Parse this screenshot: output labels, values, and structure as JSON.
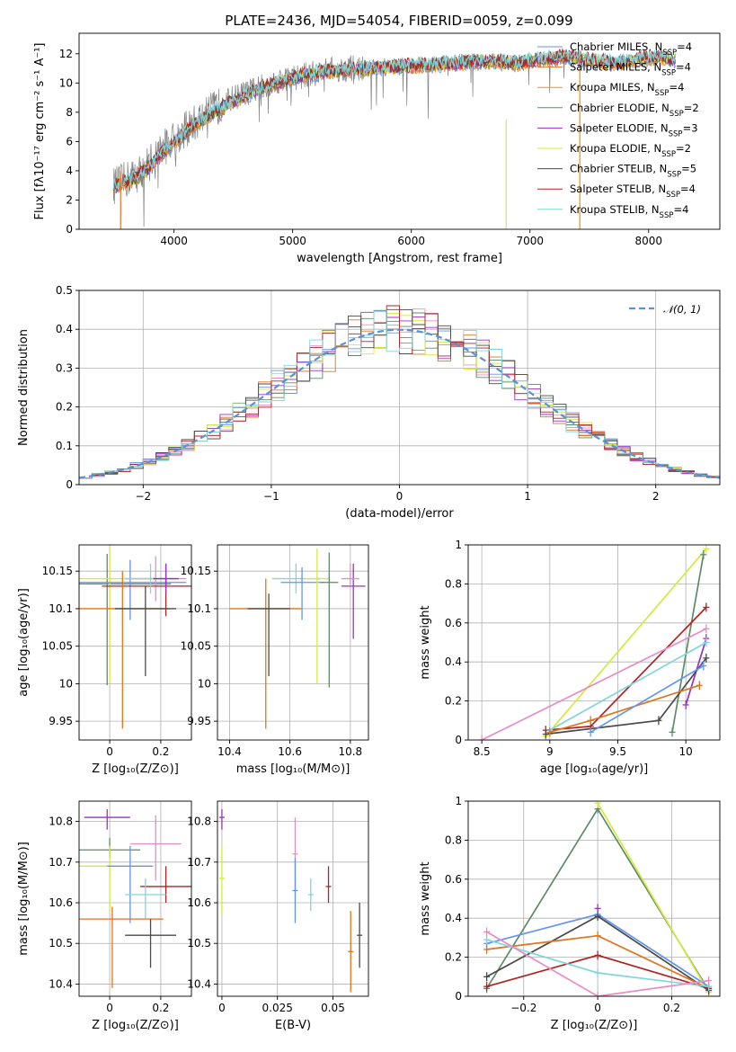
{
  "figure_title": "PLATE=2436, MJD=54054, FIBERID=0059, z=0.099",
  "colors": {
    "Chabrier MILES": "#6495ed",
    "Salpeter MILES": "#e2721b",
    "Kroupa MILES": "#ff8c00",
    "Chabrier ELODIE": "#5e8a66",
    "Salpeter ELODIE": "#9b30c0",
    "Kroupa ELODIE": "#d4ea3c",
    "Chabrier STELIB": "#4a4a4a",
    "Salpeter STELIB": "#b22222",
    "Kroupa STELIB": "#7fd6dc",
    "pink": "#e98cc4",
    "gray": "#808080"
  },
  "chart_data": [
    {
      "id": "spectrum",
      "type": "line",
      "title": "",
      "xlabel": "wavelength [Angstrom, rest frame]",
      "ylabel": "Flux [fλ10⁻¹⁷ erg cm⁻² s⁻¹ A⁻¹]",
      "xlim": [
        3200,
        8600
      ],
      "ylim": [
        0,
        13.4
      ],
      "xticks": [
        4000,
        5000,
        6000,
        7000,
        8000
      ],
      "yticks": [
        0,
        2,
        4,
        6,
        8,
        10,
        12
      ],
      "grid": false,
      "legend_position": "top-right",
      "legend": [
        "Chabrier MILES, N_SSP=4",
        "Salpeter MILES, N_SSP=4",
        "Kroupa MILES, N_SSP=4",
        "Chabrier ELODIE, N_SSP=2",
        "Salpeter ELODIE, N_SSP=3",
        "Kroupa ELODIE, N_SSP=2",
        "Chabrier STELIB, N_SSP=5",
        "Salpeter STELIB, N_SSP=4",
        "Kroupa STELIB, N_SSP=4"
      ],
      "legend_display": [
        {
          "pre": "Chabrier MILES, N",
          "sub": "SSP",
          "post": "=4"
        },
        {
          "pre": "Salpeter MILES, N",
          "sub": "SSP",
          "post": "=4"
        },
        {
          "pre": "Kroupa MILES, N",
          "sub": "SSP",
          "post": "=4"
        },
        {
          "pre": "Chabrier ELODIE, N",
          "sub": "SSP",
          "post": "=2"
        },
        {
          "pre": "Salpeter ELODIE, N",
          "sub": "SSP",
          "post": "=3"
        },
        {
          "pre": "Kroupa ELODIE, N",
          "sub": "SSP",
          "post": "=2"
        },
        {
          "pre": "Chabrier STELIB, N",
          "sub": "SSP",
          "post": "=5"
        },
        {
          "pre": "Salpeter STELIB, N",
          "sub": "SSP",
          "post": "=4"
        },
        {
          "pre": "Kroupa STELIB, N",
          "sub": "SSP",
          "post": "=4"
        }
      ],
      "observed_trend": {
        "x": [
          3500,
          3700,
          3900,
          4100,
          4300,
          4500,
          4700,
          4900,
          5100,
          5300,
          5500,
          5700,
          5900,
          6100,
          6300,
          6500,
          6700,
          6900,
          7100,
          7300,
          7400
        ],
        "y": [
          3.0,
          3.8,
          5.5,
          6.8,
          8.0,
          9.0,
          9.6,
          10.2,
          10.5,
          10.9,
          11.0,
          11.1,
          11.2,
          11.3,
          11.4,
          11.5,
          11.5,
          11.4,
          11.6,
          11.7,
          11.6
        ]
      },
      "model_trend": {
        "x": [
          3500,
          3600,
          3700,
          3800,
          3900,
          4000,
          4100,
          4200,
          4300,
          4400,
          4500,
          4700,
          4900,
          5100,
          5300,
          5500,
          5700,
          5900,
          6100,
          6300,
          6500,
          6700,
          6900,
          7100,
          7300,
          7500,
          7700,
          7900,
          8100,
          8200
        ],
        "y": [
          3.0,
          3.2,
          3.6,
          4.3,
          5.2,
          6.0,
          6.6,
          7.3,
          7.8,
          8.3,
          8.7,
          9.5,
          10.1,
          10.5,
          10.8,
          10.9,
          11.0,
          11.1,
          11.2,
          11.3,
          11.4,
          11.5,
          11.3,
          11.6,
          11.8,
          11.6,
          11.3,
          11.6,
          11.8,
          11.6
        ]
      },
      "vertical_lines": [
        {
          "x": 6800,
          "y_top": 7.5,
          "color": "Kroupa ELODIE"
        },
        {
          "x": 7420,
          "y_top": 11.8,
          "color": "Kroupa MILES"
        },
        {
          "x": 3550,
          "y_top": 4.0,
          "color": "Salpeter MILES"
        }
      ]
    },
    {
      "id": "residuals",
      "type": "line",
      "title": "",
      "xlabel": "(data-model)/error",
      "ylabel": "Normed distribution",
      "xlim": [
        -2.5,
        2.5
      ],
      "ylim": [
        0,
        0.5
      ],
      "xticks": [
        -2,
        -1,
        0,
        1,
        2
      ],
      "yticks": [
        0.0,
        0.1,
        0.2,
        0.3,
        0.4,
        0.5
      ],
      "grid": true,
      "legend_position": "top-right",
      "reference_curve": {
        "label": "𝒩(0, 1)",
        "mean": 0,
        "sigma": 1,
        "color": "#5b8fd6",
        "style": "dashed"
      },
      "histogram": {
        "bin_edges_start": -2.5,
        "bin_width": 0.1,
        "bins": 50,
        "series_colors": [
          "Chabrier MILES",
          "Salpeter MILES",
          "pink",
          "Chabrier ELODIE",
          "Salpeter ELODIE",
          "Kroupa ELODIE",
          "Chabrier STELIB",
          "Salpeter STELIB",
          "Kroupa STELIB"
        ]
      }
    },
    {
      "id": "age-vs-Z",
      "type": "scatter",
      "xlabel": "Z [log₁₀(Z/Z⊙)]",
      "ylabel": "age  [log₁₀(age/yr)]",
      "xlim": [
        -0.12,
        0.32
      ],
      "ylim": [
        9.925,
        10.185
      ],
      "xticks": [
        0.0,
        0.2
      ],
      "yticks": [
        9.95,
        10.0,
        10.05,
        10.1,
        10.15
      ],
      "grid": true,
      "points": [
        {
          "x": -0.01,
          "y": 10.133,
          "xerr": 0.25,
          "yerr": [
            0.135,
            0.04
          ],
          "color": "Chabrier ELODIE"
        },
        {
          "x": 0.0,
          "y": 10.14,
          "xerr": 0.2,
          "yerr": [
            0.14,
            0.04
          ],
          "color": "Kroupa ELODIE"
        },
        {
          "x": 0.08,
          "y": 10.135,
          "xerr": 0.22,
          "yerr": [
            0.05,
            0.03
          ],
          "color": "Chabrier MILES"
        },
        {
          "x": 0.18,
          "y": 10.14,
          "xerr": 0.12,
          "yerr": [
            0.03,
            0.03
          ],
          "color": "pink"
        },
        {
          "x": 0.22,
          "y": 10.13,
          "xerr": 0.25,
          "yerr": [
            0.04,
            0.03
          ],
          "color": "Salpeter STELIB"
        },
        {
          "x": 0.05,
          "y": 10.1,
          "xerr": 0.18,
          "yerr": [
            0.16,
            0.05
          ],
          "color": "Salpeter MILES"
        },
        {
          "x": 0.14,
          "y": 10.1,
          "xerr": 0.12,
          "yerr": [
            0.09,
            0.03
          ],
          "color": "Chabrier STELIB"
        },
        {
          "x": 0.16,
          "y": 10.14,
          "xerr": 0.1,
          "yerr": [
            0.02,
            0.02
          ],
          "color": "Kroupa STELIB"
        },
        {
          "x": 0.22,
          "y": 10.14,
          "xerr": 0.05,
          "yerr": [
            0.02,
            0.02
          ],
          "color": "Salpeter ELODIE"
        }
      ]
    },
    {
      "id": "age-vs-mass",
      "type": "scatter",
      "xlabel": "mass [log₁₀(M/M⊙)]",
      "ylabel": "",
      "xlim": [
        10.36,
        10.86
      ],
      "ylim": [
        9.925,
        10.185
      ],
      "xticks": [
        10.4,
        10.6,
        10.8
      ],
      "yticks": [
        9.95,
        10.0,
        10.05,
        10.1,
        10.15
      ],
      "grid": true,
      "points": [
        {
          "x": 10.52,
          "y": 10.1,
          "xerr": 0.12,
          "yerr": [
            0.16,
            0.04
          ],
          "color": "Salpeter MILES"
        },
        {
          "x": 10.53,
          "y": 10.1,
          "xerr": 0.07,
          "yerr": [
            0.09,
            0.02
          ],
          "color": "Chabrier STELIB"
        },
        {
          "x": 10.62,
          "y": 10.14,
          "xerr": 0.08,
          "yerr": [
            0.02,
            0.02
          ],
          "color": "Kroupa STELIB"
        },
        {
          "x": 10.64,
          "y": 10.135,
          "xerr": 0.07,
          "yerr": [
            0.05,
            0.02
          ],
          "color": "Chabrier MILES"
        },
        {
          "x": 10.69,
          "y": 10.14,
          "xerr": 0.04,
          "yerr": [
            0.14,
            0.04
          ],
          "color": "Kroupa ELODIE"
        },
        {
          "x": 10.73,
          "y": 10.135,
          "xerr": 0.03,
          "yerr": [
            0.14,
            0.04
          ],
          "color": "Chabrier ELODIE"
        },
        {
          "x": 10.81,
          "y": 10.13,
          "xerr": 0.04,
          "yerr": [
            0.07,
            0.03
          ],
          "color": "Salpeter ELODIE"
        },
        {
          "x": 10.8,
          "y": 10.14,
          "xerr": 0.03,
          "yerr": [
            0.01,
            0.02
          ],
          "color": "pink"
        }
      ]
    },
    {
      "id": "mass-weight-vs-age",
      "type": "line",
      "xlabel": "age  [log₁₀(age/yr)]",
      "ylabel": "mass weight",
      "xlim": [
        8.4,
        10.25
      ],
      "ylim": [
        0,
        1.0
      ],
      "xticks": [
        8.5,
        9.0,
        9.5,
        10.0
      ],
      "yticks": [
        0.0,
        0.2,
        0.4,
        0.6,
        0.8,
        1.0
      ],
      "grid": true,
      "series": [
        {
          "color": "Kroupa ELODIE",
          "x": [
            8.97,
            10.15
          ],
          "y": [
            0.02,
            0.98
          ]
        },
        {
          "color": "Chabrier ELODIE",
          "x": [
            9.9,
            10.13
          ],
          "y": [
            0.04,
            0.95
          ]
        },
        {
          "color": "Salpeter STELIB",
          "x": [
            8.97,
            9.3,
            10.15
          ],
          "y": [
            0.05,
            0.07,
            0.68
          ]
        },
        {
          "color": "pink",
          "x": [
            8.5,
            10.15
          ],
          "y": [
            0.0,
            0.57
          ]
        },
        {
          "color": "Salpeter ELODIE",
          "x": [
            10.0,
            10.15
          ],
          "y": [
            0.18,
            0.52
          ]
        },
        {
          "color": "Kroupa STELIB",
          "x": [
            9.0,
            10.15
          ],
          "y": [
            0.05,
            0.5
          ]
        },
        {
          "color": "Chabrier STELIB",
          "x": [
            8.97,
            9.8,
            10.15
          ],
          "y": [
            0.03,
            0.1,
            0.42
          ]
        },
        {
          "color": "Salpeter MILES",
          "x": [
            9.0,
            9.3,
            10.1
          ],
          "y": [
            0.04,
            0.1,
            0.28
          ]
        },
        {
          "color": "Chabrier MILES",
          "x": [
            9.3,
            10.13
          ],
          "y": [
            0.04,
            0.38
          ]
        }
      ]
    },
    {
      "id": "mass-vs-Z",
      "type": "scatter",
      "xlabel": "Z [log₁₀(Z/Z⊙)]",
      "ylabel": "mass [log₁₀(M/M⊙)]",
      "xlim": [
        -0.12,
        0.32
      ],
      "ylim": [
        10.37,
        10.85
      ],
      "xticks": [
        0.0,
        0.2
      ],
      "yticks": [
        10.4,
        10.5,
        10.6,
        10.7,
        10.8
      ],
      "grid": true,
      "points": [
        {
          "x": -0.01,
          "y": 10.81,
          "xerr": 0.09,
          "yerr": [
            0.03,
            0.02
          ],
          "color": "Salpeter ELODIE"
        },
        {
          "x": 0.0,
          "y": 10.73,
          "xerr": 0.12,
          "yerr": [
            0.02,
            0.03
          ],
          "color": "Chabrier ELODIE"
        },
        {
          "x": 0.0,
          "y": 10.69,
          "xerr": 0.13,
          "yerr": [
            0.11,
            0.05
          ],
          "color": "Kroupa ELODIE"
        },
        {
          "x": 0.08,
          "y": 10.69,
          "xerr": 0.09,
          "yerr": [
            0.14,
            0.05
          ],
          "color": "Chabrier MILES"
        },
        {
          "x": 0.18,
          "y": 10.745,
          "xerr": 0.1,
          "yerr": [
            0.09,
            0.07
          ],
          "color": "pink"
        },
        {
          "x": 0.22,
          "y": 10.64,
          "xerr": 0.1,
          "yerr": [
            0.04,
            0.05
          ],
          "color": "Salpeter STELIB"
        },
        {
          "x": 0.14,
          "y": 10.62,
          "xerr": 0.08,
          "yerr": [
            0.06,
            0.04
          ],
          "color": "Kroupa STELIB"
        },
        {
          "x": 0.01,
          "y": 10.56,
          "xerr": 0.2,
          "yerr": [
            0.17,
            0.03
          ],
          "color": "Salpeter MILES"
        },
        {
          "x": 0.16,
          "y": 10.52,
          "xerr": 0.1,
          "yerr": [
            0.08,
            0.04
          ],
          "color": "Chabrier STELIB"
        }
      ]
    },
    {
      "id": "mass-vs-EBV",
      "type": "scatter",
      "xlabel": "E(B-V)",
      "ylabel": "",
      "xlim": [
        -0.002,
        0.066
      ],
      "ylim": [
        10.37,
        10.85
      ],
      "xticks": [
        0.0,
        0.025,
        0.05
      ],
      "yticks": [
        10.4,
        10.5,
        10.6,
        10.7,
        10.8
      ],
      "grid": true,
      "points": [
        {
          "x": 0.0,
          "y": 10.81,
          "yerr": [
            0.03,
            0.02
          ],
          "color": "Salpeter ELODIE"
        },
        {
          "x": 0.0,
          "y": 10.66,
          "yerr": [
            0.09,
            0.08
          ],
          "color": "Kroupa ELODIE"
        },
        {
          "x": 0.033,
          "y": 10.72,
          "yerr": [
            0.09,
            0.09
          ],
          "color": "pink"
        },
        {
          "x": 0.033,
          "y": 10.63,
          "yerr": [
            0.08,
            0.08
          ],
          "color": "Chabrier MILES"
        },
        {
          "x": 0.04,
          "y": 10.62,
          "yerr": [
            0.04,
            0.04
          ],
          "color": "Kroupa STELIB"
        },
        {
          "x": 0.048,
          "y": 10.64,
          "yerr": [
            0.04,
            0.05
          ],
          "color": "Salpeter STELIB"
        },
        {
          "x": 0.058,
          "y": 10.48,
          "yerr": [
            0.1,
            0.1
          ],
          "color": "Salpeter MILES"
        },
        {
          "x": 0.062,
          "y": 10.52,
          "yerr": [
            0.08,
            0.08
          ],
          "color": "Chabrier STELIB"
        }
      ]
    },
    {
      "id": "mass-weight-vs-Z",
      "type": "line",
      "xlabel": "Z [log₁₀(Z/Z⊙)]",
      "ylabel": "mass weight",
      "xlim": [
        -0.35,
        0.33
      ],
      "ylim": [
        0,
        1.0
      ],
      "xticks": [
        -0.2,
        0.0,
        0.2
      ],
      "yticks": [
        0.0,
        0.2,
        0.4,
        0.6,
        0.8,
        1.0
      ],
      "grid": true,
      "series": [
        {
          "color": "Chabrier ELODIE",
          "x": [
            -0.3,
            0.0,
            0.3
          ],
          "y": [
            0.04,
            0.96,
            0.03
          ]
        },
        {
          "color": "Kroupa ELODIE",
          "x": [
            0.0,
            0.3
          ],
          "y": [
            0.99,
            0.02
          ]
        },
        {
          "color": "Chabrier MILES",
          "x": [
            -0.3,
            0.0,
            0.3
          ],
          "y": [
            0.27,
            0.42,
            0.05
          ]
        },
        {
          "color": "Chabrier STELIB",
          "x": [
            -0.3,
            0.0,
            0.3
          ],
          "y": [
            0.1,
            0.41,
            0.03
          ]
        },
        {
          "color": "Salpeter MILES",
          "x": [
            -0.3,
            0.0,
            0.3
          ],
          "y": [
            0.24,
            0.31,
            0.04
          ]
        },
        {
          "color": "Salpeter STELIB",
          "x": [
            -0.3,
            0.0,
            0.3
          ],
          "y": [
            0.05,
            0.21,
            0.04
          ]
        },
        {
          "color": "Kroupa STELIB",
          "x": [
            -0.3,
            0.0,
            0.3
          ],
          "y": [
            0.29,
            0.12,
            0.05
          ]
        },
        {
          "color": "pink",
          "x": [
            -0.3,
            0.0,
            0.3
          ],
          "y": [
            0.33,
            0.0,
            0.08
          ]
        },
        {
          "color": "Salpeter ELODIE",
          "x": [
            0.0
          ],
          "y": [
            0.45
          ]
        }
      ]
    }
  ]
}
